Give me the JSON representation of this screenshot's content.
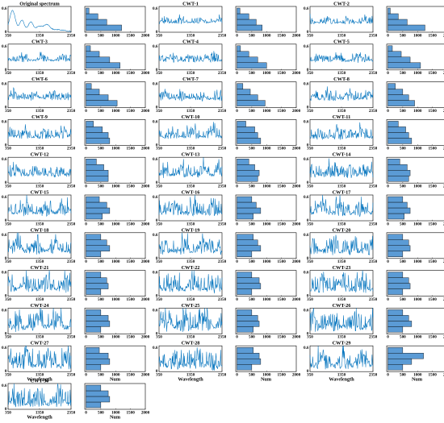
{
  "colors": {
    "series": "#0072bd",
    "bar_fill": "#5b9bd5",
    "bar_stroke": "#000000",
    "frame": "#000000",
    "background": "#ffffff"
  },
  "chart_data": {
    "type": "figure-grid",
    "layout": {
      "columns": 3,
      "rows": 11,
      "panels_per_cell": 2
    },
    "spectrum_panel": {
      "type": "line",
      "xticks": [
        "350",
        "1350",
        "2350"
      ],
      "xlim": [
        350,
        2350
      ],
      "yticks": [
        "0",
        "0.6"
      ],
      "ylim": [
        0,
        0.6
      ],
      "xlabel": "Wavelength"
    },
    "histogram_panel": {
      "type": "bar",
      "orientation": "horizontal",
      "xticks": [
        "0",
        "500",
        "1000",
        "1500",
        "2000"
      ],
      "xlim": [
        0,
        2000
      ],
      "xlabel": "Num",
      "bins": 4
    },
    "panels": [
      {
        "title": "Original spectrum",
        "hist": [
          1200,
          700,
          400,
          100
        ]
      },
      {
        "title": "CWT-1",
        "hist": [
          850,
          650,
          400,
          100
        ]
      },
      {
        "title": "CWT-2",
        "hist": [
          1250,
          650,
          350,
          80
        ]
      },
      {
        "title": "CWT-3",
        "hist": [
          1150,
          800,
          450,
          150
        ]
      },
      {
        "title": "CWT-4",
        "hist": [
          1000,
          700,
          400,
          120
        ]
      },
      {
        "title": "CWT-5",
        "hist": [
          1100,
          750,
          450,
          150
        ]
      },
      {
        "title": "CWT-6",
        "hist": [
          1050,
          750,
          450,
          180
        ]
      },
      {
        "title": "CWT-7",
        "hist": [
          950,
          700,
          450,
          200
        ]
      },
      {
        "title": "CWT-8",
        "hist": [
          900,
          700,
          500,
          250
        ]
      },
      {
        "title": "CWT-9",
        "hist": [
          800,
          750,
          550,
          250
        ]
      },
      {
        "title": "CWT-10",
        "hist": [
          800,
          700,
          600,
          300
        ]
      },
      {
        "title": "CWT-11",
        "hist": [
          800,
          700,
          600,
          350
        ]
      },
      {
        "title": "CWT-12",
        "hist": [
          750,
          750,
          600,
          350
        ]
      },
      {
        "title": "CWT-13",
        "hist": [
          700,
          750,
          600,
          400
        ]
      },
      {
        "title": "CWT-14",
        "hist": [
          700,
          750,
          650,
          400
        ]
      },
      {
        "title": "CWT-15",
        "hist": [
          550,
          800,
          700,
          450
        ]
      },
      {
        "title": "CWT-16",
        "hist": [
          550,
          800,
          650,
          500
        ]
      },
      {
        "title": "CWT-17",
        "hist": [
          550,
          750,
          650,
          500
        ]
      },
      {
        "title": "CWT-18",
        "hist": [
          500,
          800,
          700,
          500
        ]
      },
      {
        "title": "CWT-19",
        "hist": [
          500,
          800,
          700,
          550
        ]
      },
      {
        "title": "CWT-20",
        "hist": [
          500,
          750,
          700,
          500
        ]
      },
      {
        "title": "CWT-21",
        "hist": [
          500,
          750,
          700,
          500
        ]
      },
      {
        "title": "CWT-22",
        "hist": [
          500,
          800,
          750,
          500
        ]
      },
      {
        "title": "CWT-23",
        "hist": [
          500,
          750,
          700,
          500
        ]
      },
      {
        "title": "CWT-24",
        "hist": [
          500,
          800,
          750,
          500
        ]
      },
      {
        "title": "CWT-25",
        "hist": [
          550,
          750,
          700,
          500
        ]
      },
      {
        "title": "CWT-26",
        "hist": [
          500,
          800,
          700,
          500
        ]
      },
      {
        "title": "CWT-27",
        "hist": [
          500,
          800,
          750,
          450
        ]
      },
      {
        "title": "CWT-28",
        "hist": [
          500,
          800,
          750,
          550
        ]
      },
      {
        "title": "CWT-29",
        "hist": [
          500,
          800,
          1200,
          500
        ]
      },
      {
        "title": "CWT-30",
        "hist": [
          500,
          800,
          750,
          500
        ]
      }
    ]
  }
}
